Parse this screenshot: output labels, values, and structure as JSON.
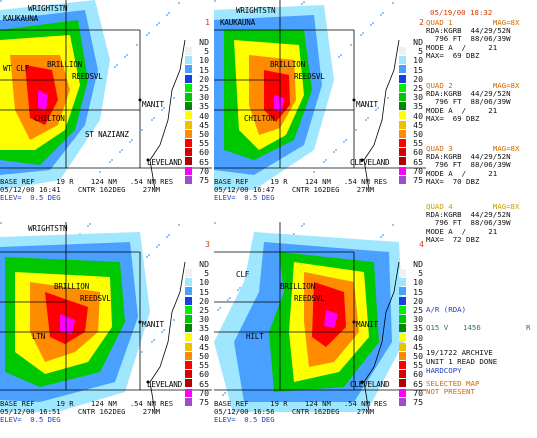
{
  "timestamp": "05/19/00 18:32",
  "scale_header": "ND",
  "scale_values": [
    "5",
    "10",
    "15",
    "20",
    "25",
    "30",
    "35",
    "40",
    "45",
    "50",
    "55",
    "60",
    "65",
    "70",
    "75"
  ],
  "scale_colors": [
    "#f0f0f0",
    "#9fe6ff",
    "#4aa0ff",
    "#1840e0",
    "#00f000",
    "#00c800",
    "#008800",
    "#ffff00",
    "#f0c000",
    "#ff8c00",
    "#ff0000",
    "#d80000",
    "#b00000",
    "#ff00ff",
    "#9c4ccc"
  ],
  "quads": [
    {
      "num": "1",
      "cities": {
        "wrightstown": "WRIGHTSTN",
        "kaukauna": "KAUKAUNA",
        "clf": "WT CLF",
        "brillion": "BRILLION",
        "reedsvl": "REEDSVL",
        "chilton": "CHILTON",
        "manit": "MANIT",
        "stnazianz": "ST NAZIANZ",
        "cleveland": "LEVELAND"
      },
      "footer": {
        "line1": "BASE REF     19 R    124 NM   .54 NM RES",
        "line2": "05/12/00 16:41    CNTR 162DEG    27NM",
        "line3": "ELEV=  0.5 DEG"
      }
    },
    {
      "num": "2",
      "cities": {
        "wrightstown": "WRIGHTSTN",
        "kaukauna": "KAUKAUNA",
        "clf": "",
        "brillion": "BRILLION",
        "reedsvl": "REEDSVL",
        "chilton": "CHILTON",
        "manit": "MANIT",
        "stnazianz": "",
        "cleveland": "CLEVELAND"
      },
      "footer": {
        "line1": "BASE REF     19 R    124 NM   .54 NM RES",
        "line2": "05/12/00 16:47    CNTR 162DEG    27NM",
        "line3": "ELEV=  0.5 DEG"
      }
    },
    {
      "num": "3",
      "cities": {
        "wrightstown": "WRIGHTSTN",
        "kaukauna": "",
        "clf": "",
        "brillion": "BRILLION",
        "reedsvl": "REEDSVL",
        "chilton": "LTN",
        "manit": "MANIT",
        "stnazianz": "",
        "cleveland": "LEVELAND"
      },
      "footer": {
        "line1": "BASE REF     19 R    124 NM   .54 NM RES",
        "line2": "05/12/00 16:51    CNTR 162DEG    27NM",
        "line3": "ELEV=  0.5 DEG"
      }
    },
    {
      "num": "4",
      "cities": {
        "wrightstown": "",
        "kaukauna": "",
        "clf": "CLF",
        "brillion": "BRILLION",
        "reedsvl": "REEDSVL",
        "chilton": "HILT",
        "manit": "MANIT",
        "stnazianz": "",
        "cleveland": "CLEVELAND"
      },
      "footer": {
        "line1": "BASE REF     19 R    124 NM   .54 NM RES",
        "line2": "05/12/00 16:56    CNTR 162DEG    27NM",
        "line3": "ELEV=  0.5 DEG"
      }
    }
  ],
  "info_panels": [
    {
      "header": "QUAD 1         MAG=8X",
      "lines": [
        "RDA:KGRB  44/29/52N",
        "  796 FT  88/06/39W",
        "MODE A  /     21",
        "MAX=  69 DBZ"
      ]
    },
    {
      "header": "QUAD 2         MAG=8X",
      "lines": [
        "RDA:KGRB  44/29/52N",
        "  796 FT  88/06/39W",
        "MODE A  /     21",
        "MAX=  69 DBZ"
      ]
    },
    {
      "header": "QUAD 3         MAG=8X",
      "lines": [
        "RDA:KGRB  44/29/52N",
        "  796 FT  88/06/39W",
        "MODE A  /     21",
        "MAX=  70 DBZ"
      ]
    },
    {
      "header": "QUAD 4         MAG=8X",
      "lines": [
        "RDA:KGRB  44/29/52N",
        "  796 FT  88/06/39W",
        "MODE A  /     21",
        "MAX=  72 DBZ"
      ]
    }
  ],
  "status": {
    "ar_rda": "A/R (RDA)",
    "q15_left": "Q15 V",
    "q15_val": "1456",
    "q15_right": "R",
    "archive": "19/1722 ARCHIVE",
    "unit": "UNIT 1 READ DONE",
    "hardcopy": "HARDCOPY",
    "selected_map": "SELECTED MAP",
    "not_present": "NOT PRESENT"
  },
  "colors": {
    "accent": "#d46a00",
    "blue_text": "#2040c0",
    "frame": "#000000"
  }
}
